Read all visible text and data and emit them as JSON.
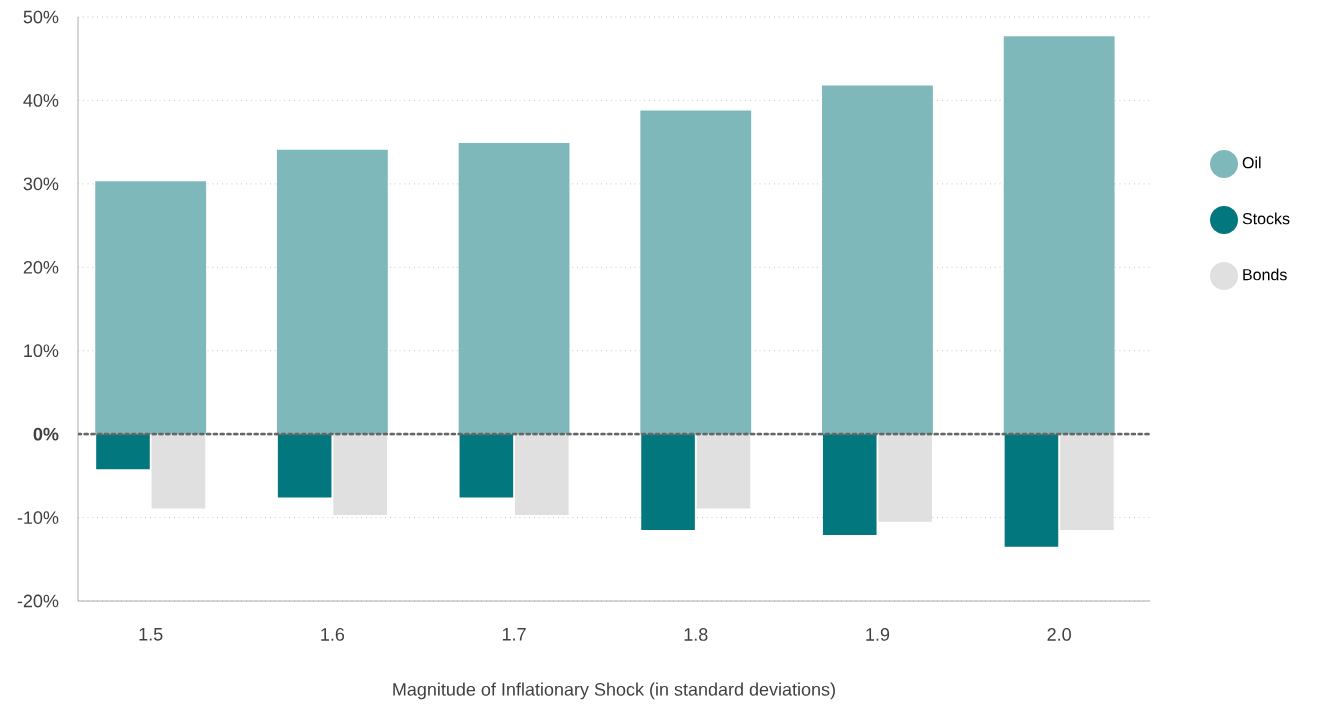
{
  "chart_data": {
    "type": "bar",
    "xlabel": "Magnitude of Inflationary Shock (in standard deviations)",
    "categories": [
      "1.5",
      "1.6",
      "1.7",
      "1.8",
      "1.9",
      "2.0"
    ],
    "series": [
      {
        "name": "Oil",
        "color": "#7fb8bb",
        "values": [
          30.3,
          34.1,
          34.9,
          38.8,
          41.8,
          47.7
        ]
      },
      {
        "name": "Stocks",
        "color": "#02777e",
        "values": [
          -4.2,
          -7.6,
          -7.6,
          -11.5,
          -12.1,
          -13.5
        ]
      },
      {
        "name": "Bonds",
        "color": "#e0e0e0",
        "values": [
          -8.9,
          -9.7,
          -9.7,
          -8.9,
          -10.5,
          -11.5
        ]
      }
    ],
    "ylim": [
      -20,
      50
    ],
    "yticks": [
      {
        "value": -20,
        "label": "-20%"
      },
      {
        "value": -10,
        "label": "-10%"
      },
      {
        "value": 0,
        "label": "0%"
      },
      {
        "value": 10,
        "label": "10%"
      },
      {
        "value": 20,
        "label": "20%"
      },
      {
        "value": 30,
        "label": "30%"
      },
      {
        "value": 40,
        "label": "40%"
      },
      {
        "value": 50,
        "label": "50%"
      }
    ],
    "grid": "y",
    "ref_lines": [
      {
        "axis": "y",
        "value": 0,
        "color": "#666666",
        "line_style": "dotted"
      }
    ],
    "legend": "right"
  }
}
